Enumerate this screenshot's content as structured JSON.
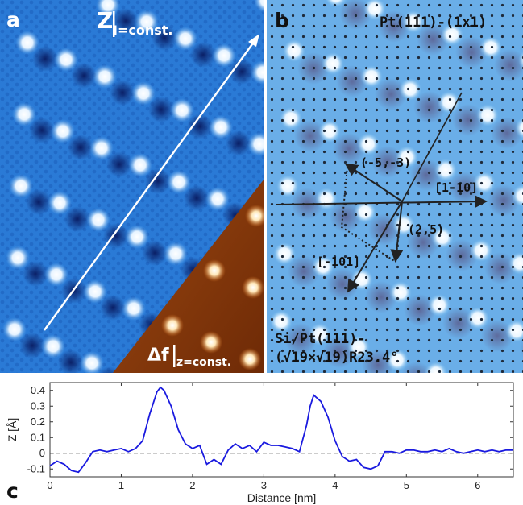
{
  "panel_a": {
    "label": "a",
    "z_label_main": "Z",
    "z_label_sub": "I=const.",
    "df_label_main": "Δf",
    "df_label_sub": "z=const."
  },
  "panel_b": {
    "label": "b",
    "title": "Pt(111)-(1x1)",
    "vec1": "(-5,-3)",
    "vec2": "(2,5)",
    "dir1": "[1-10]",
    "dir2": "[-101]",
    "bottom_line1": "Si/Pt(111)-",
    "bottom_line2": "(√19×√19)R23.4°"
  },
  "panel_c": {
    "label": "c"
  },
  "colors": {
    "stm_blue": "#1f6fd0",
    "afm_orange": "#b4520e",
    "profile_line": "#1a1adf"
  },
  "chart_data": {
    "type": "line",
    "xlabel": "Distance [nm]",
    "ylabel": "Z [Å]",
    "xlim": [
      0,
      6.5
    ],
    "ylim": [
      -0.15,
      0.45
    ],
    "x_ticks": [
      0,
      1,
      2,
      3,
      4,
      5,
      6
    ],
    "x_tick_labels": [
      "0",
      "1",
      "2",
      "3",
      "4",
      "5",
      "6"
    ],
    "y_ticks": [
      -0.1,
      0,
      0.1,
      0.2,
      0.3,
      0.4
    ],
    "y_tick_labels": [
      "-0.1",
      "0",
      "0.1",
      "0.2",
      "0.3",
      "0.4"
    ],
    "reference_line": 0,
    "series": [
      {
        "x": [
          0,
          0.1,
          0.2,
          0.3,
          0.4,
          0.5,
          0.6,
          0.7,
          0.8,
          0.9,
          1.0,
          1.1,
          1.2,
          1.3,
          1.4,
          1.5,
          1.55,
          1.6,
          1.7,
          1.8,
          1.9,
          2.0,
          2.1,
          2.2,
          2.3,
          2.4,
          2.5,
          2.6,
          2.7,
          2.8,
          2.9,
          3.0,
          3.1,
          3.2,
          3.3,
          3.4,
          3.5,
          3.6,
          3.65,
          3.7,
          3.8,
          3.9,
          4.0,
          4.1,
          4.2,
          4.3,
          4.4,
          4.5,
          4.6,
          4.7,
          4.8,
          4.9,
          5.0,
          5.1,
          5.2,
          5.3,
          5.4,
          5.5,
          5.6,
          5.7,
          5.8,
          5.9,
          6.0,
          6.1,
          6.2,
          6.3,
          6.4,
          6.5
        ],
        "y": [
          -0.08,
          -0.05,
          -0.07,
          -0.11,
          -0.12,
          -0.06,
          0.01,
          0.02,
          0.01,
          0.02,
          0.03,
          0.01,
          0.03,
          0.08,
          0.25,
          0.39,
          0.42,
          0.4,
          0.3,
          0.15,
          0.06,
          0.03,
          0.05,
          -0.07,
          -0.04,
          -0.07,
          0.02,
          0.06,
          0.03,
          0.05,
          0.01,
          0.07,
          0.05,
          0.05,
          0.04,
          0.03,
          0.01,
          0.18,
          0.3,
          0.37,
          0.33,
          0.23,
          0.08,
          -0.02,
          -0.05,
          -0.04,
          -0.09,
          -0.1,
          -0.08,
          0.01,
          0.01,
          0.0,
          0.02,
          0.02,
          0.01,
          0.01,
          0.02,
          0.01,
          0.03,
          0.01,
          0.0,
          0.01,
          0.02,
          0.01,
          0.02,
          0.01,
          0.02,
          0.02
        ]
      }
    ]
  }
}
